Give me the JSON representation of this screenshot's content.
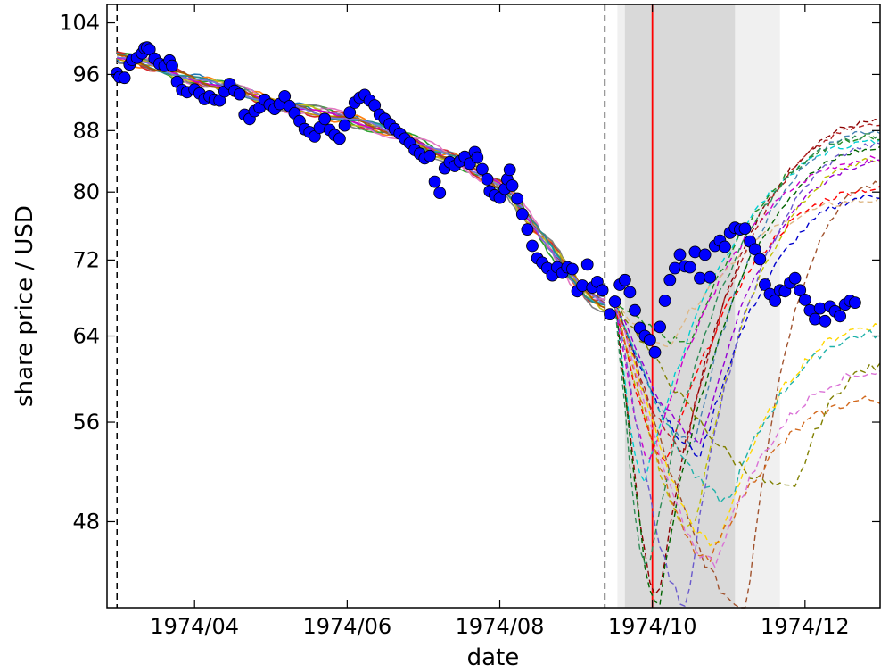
{
  "chart_data": {
    "type": "scatter",
    "xlabel": "date",
    "ylabel": "share price / USD",
    "y_scale": "log",
    "xlim": [
      "1974-02-25",
      "1974-12-31"
    ],
    "ylim": [
      42,
      107
    ],
    "x_ticks": [
      {
        "date": "1974-04-01",
        "label": "1974/04"
      },
      {
        "date": "1974-06-01",
        "label": "1974/06"
      },
      {
        "date": "1974-08-01",
        "label": "1974/08"
      },
      {
        "date": "1974-10-01",
        "label": "1974/10"
      },
      {
        "date": "1974-12-01",
        "label": "1974/12"
      }
    ],
    "y_ticks": [
      {
        "value": 48,
        "label": "48"
      },
      {
        "value": 56,
        "label": "56"
      },
      {
        "value": 64,
        "label": "64"
      },
      {
        "value": 72,
        "label": "72"
      },
      {
        "value": 80,
        "label": "80"
      },
      {
        "value": 88,
        "label": "88"
      },
      {
        "value": 96,
        "label": "96"
      },
      {
        "value": 104,
        "label": "104"
      }
    ],
    "grid": false,
    "vertical_lines": [
      {
        "date": "1974-03-01",
        "style": "dashed",
        "color": "#000000"
      },
      {
        "date": "1974-09-12",
        "style": "dashed",
        "color": "#000000"
      },
      {
        "date": "1974-10-01",
        "style": "solid",
        "color": "#ff0000"
      }
    ],
    "shaded_regions": [
      {
        "start": "1974-09-17",
        "end": "1974-11-21",
        "color": "#f0f0f0"
      },
      {
        "start": "1974-09-20",
        "end": "1974-11-03",
        "color": "#d9d9d9"
      }
    ],
    "observed": {
      "color": "#0000ff",
      "points": [
        [
          "1974-03-01",
          96.2
        ],
        [
          "1974-03-02",
          95.6
        ],
        [
          "1974-03-04",
          95.5
        ],
        [
          "1974-03-06",
          97.5
        ],
        [
          "1974-03-07",
          98.2
        ],
        [
          "1974-03-09",
          98.5
        ],
        [
          "1974-03-11",
          99.2
        ],
        [
          "1974-03-12",
          100.0
        ],
        [
          "1974-03-13",
          100.1
        ],
        [
          "1974-03-14",
          99.8
        ],
        [
          "1974-03-16",
          98.4
        ],
        [
          "1974-03-18",
          97.6
        ],
        [
          "1974-03-20",
          97.3
        ],
        [
          "1974-03-22",
          98.1
        ],
        [
          "1974-03-23",
          97.3
        ],
        [
          "1974-03-25",
          94.9
        ],
        [
          "1974-03-27",
          93.7
        ],
        [
          "1974-03-29",
          93.4
        ],
        [
          "1974-04-01",
          93.8
        ],
        [
          "1974-04-03",
          93.2
        ],
        [
          "1974-04-05",
          92.4
        ],
        [
          "1974-04-07",
          92.8
        ],
        [
          "1974-04-09",
          92.3
        ],
        [
          "1974-04-11",
          92.2
        ],
        [
          "1974-04-13",
          93.5
        ],
        [
          "1974-04-15",
          94.6
        ],
        [
          "1974-04-17",
          93.6
        ],
        [
          "1974-04-19",
          93.1
        ],
        [
          "1974-04-21",
          90.2
        ],
        [
          "1974-04-23",
          89.6
        ],
        [
          "1974-04-25",
          90.7
        ],
        [
          "1974-04-27",
          91.2
        ],
        [
          "1974-04-29",
          92.3
        ],
        [
          "1974-05-01",
          91.6
        ],
        [
          "1974-05-03",
          91.0
        ],
        [
          "1974-05-05",
          91.7
        ],
        [
          "1974-05-07",
          92.8
        ],
        [
          "1974-05-09",
          91.4
        ],
        [
          "1974-05-11",
          90.4
        ],
        [
          "1974-05-13",
          89.3
        ],
        [
          "1974-05-15",
          88.2
        ],
        [
          "1974-05-17",
          87.8
        ],
        [
          "1974-05-19",
          87.2
        ],
        [
          "1974-05-21",
          88.4
        ],
        [
          "1974-05-23",
          89.6
        ],
        [
          "1974-05-25",
          88.1
        ],
        [
          "1974-05-27",
          87.4
        ],
        [
          "1974-05-29",
          86.9
        ],
        [
          "1974-05-31",
          88.7
        ],
        [
          "1974-06-02",
          90.5
        ],
        [
          "1974-06-04",
          91.9
        ],
        [
          "1974-06-06",
          92.6
        ],
        [
          "1974-06-08",
          93.0
        ],
        [
          "1974-06-10",
          92.2
        ],
        [
          "1974-06-12",
          91.5
        ],
        [
          "1974-06-14",
          90.2
        ],
        [
          "1974-06-16",
          89.6
        ],
        [
          "1974-06-18",
          88.9
        ],
        [
          "1974-06-20",
          88.2
        ],
        [
          "1974-06-22",
          87.6
        ],
        [
          "1974-06-24",
          86.9
        ],
        [
          "1974-06-26",
          86.3
        ],
        [
          "1974-06-28",
          85.4
        ],
        [
          "1974-06-30",
          84.9
        ],
        [
          "1974-07-02",
          84.3
        ],
        [
          "1974-07-04",
          84.6
        ],
        [
          "1974-07-06",
          81.3
        ],
        [
          "1974-07-08",
          79.9
        ],
        [
          "1974-07-10",
          83.0
        ],
        [
          "1974-07-12",
          83.8
        ],
        [
          "1974-07-14",
          83.3
        ],
        [
          "1974-07-16",
          83.9
        ],
        [
          "1974-07-18",
          84.5
        ],
        [
          "1974-07-20",
          83.6
        ],
        [
          "1974-07-22",
          85.1
        ],
        [
          "1974-07-23",
          84.4
        ],
        [
          "1974-07-25",
          82.9
        ],
        [
          "1974-07-27",
          81.6
        ],
        [
          "1974-07-28",
          80.1
        ],
        [
          "1974-07-30",
          79.6
        ],
        [
          "1974-08-01",
          79.3
        ],
        [
          "1974-08-03",
          80.4
        ],
        [
          "1974-08-04",
          81.6
        ],
        [
          "1974-08-05",
          82.8
        ],
        [
          "1974-08-06",
          80.8
        ],
        [
          "1974-08-08",
          79.2
        ],
        [
          "1974-08-10",
          77.3
        ],
        [
          "1974-08-12",
          75.5
        ],
        [
          "1974-08-14",
          73.6
        ],
        [
          "1974-08-16",
          72.2
        ],
        [
          "1974-08-18",
          71.7
        ],
        [
          "1974-08-20",
          71.1
        ],
        [
          "1974-08-22",
          70.3
        ],
        [
          "1974-08-24",
          71.2
        ],
        [
          "1974-08-26",
          70.6
        ],
        [
          "1974-08-28",
          71.2
        ],
        [
          "1974-08-30",
          71.0
        ],
        [
          "1974-09-01",
          68.6
        ],
        [
          "1974-09-03",
          69.2
        ],
        [
          "1974-09-05",
          71.5
        ],
        [
          "1974-09-07",
          69.0
        ],
        [
          "1974-09-09",
          69.6
        ],
        [
          "1974-09-11",
          68.7
        ],
        [
          "1974-09-14",
          66.2
        ],
        [
          "1974-09-16",
          67.5
        ],
        [
          "1974-09-18",
          69.3
        ],
        [
          "1974-09-20",
          69.8
        ],
        [
          "1974-09-22",
          68.5
        ],
        [
          "1974-09-24",
          66.6
        ],
        [
          "1974-09-26",
          64.8
        ],
        [
          "1974-09-28",
          64.0
        ],
        [
          "1974-09-30",
          63.6
        ],
        [
          "1974-10-02",
          62.4
        ],
        [
          "1974-10-04",
          64.9
        ],
        [
          "1974-10-06",
          67.6
        ],
        [
          "1974-10-08",
          69.8
        ],
        [
          "1974-10-10",
          71.1
        ],
        [
          "1974-10-12",
          72.6
        ],
        [
          "1974-10-14",
          71.3
        ],
        [
          "1974-10-16",
          71.2
        ],
        [
          "1974-10-18",
          72.9
        ],
        [
          "1974-10-20",
          70.0
        ],
        [
          "1974-10-22",
          72.6
        ],
        [
          "1974-10-24",
          70.1
        ],
        [
          "1974-10-26",
          73.6
        ],
        [
          "1974-10-28",
          74.2
        ],
        [
          "1974-10-30",
          73.5
        ],
        [
          "1974-11-01",
          75.1
        ],
        [
          "1974-11-03",
          75.7
        ],
        [
          "1974-11-05",
          75.5
        ],
        [
          "1974-11-07",
          75.6
        ],
        [
          "1974-11-09",
          74.1
        ],
        [
          "1974-11-11",
          73.2
        ],
        [
          "1974-11-13",
          72.1
        ],
        [
          "1974-11-15",
          69.3
        ],
        [
          "1974-11-17",
          68.3
        ],
        [
          "1974-11-19",
          67.6
        ],
        [
          "1974-11-21",
          68.7
        ],
        [
          "1974-11-23",
          68.6
        ],
        [
          "1974-11-25",
          69.5
        ],
        [
          "1974-11-27",
          70.0
        ],
        [
          "1974-11-29",
          68.7
        ],
        [
          "1974-12-01",
          67.7
        ],
        [
          "1974-12-03",
          66.6
        ],
        [
          "1974-12-05",
          65.7
        ],
        [
          "1974-12-07",
          66.8
        ],
        [
          "1974-12-09",
          65.5
        ],
        [
          "1974-12-11",
          67.0
        ],
        [
          "1974-12-13",
          66.5
        ],
        [
          "1974-12-15",
          66.0
        ],
        [
          "1974-12-17",
          67.2
        ],
        [
          "1974-12-19",
          67.6
        ],
        [
          "1974-12-21",
          67.4
        ]
      ]
    },
    "fit_colors": [
      "#1f77b4",
      "#ff7f0e",
      "#2ca02c",
      "#d62728",
      "#9467bd",
      "#8c564b",
      "#e377c2",
      "#7f7f7f",
      "#bcbd22",
      "#17becf",
      "#cc9900",
      "#cc00cc",
      "#2a8a8a",
      "#aa5500",
      "#7777dd"
    ],
    "fit_trend": [
      [
        "1974-03-01",
        98.8
      ],
      [
        "1974-03-15",
        97.2
      ],
      [
        "1974-04-01",
        95.4
      ],
      [
        "1974-04-20",
        93.3
      ],
      [
        "1974-05-10",
        91.3
      ],
      [
        "1974-05-31",
        89.7
      ],
      [
        "1974-06-15",
        88.4
      ],
      [
        "1974-07-01",
        86.0
      ],
      [
        "1974-07-20",
        83.3
      ],
      [
        "1974-08-05",
        79.9
      ],
      [
        "1974-08-18",
        74.7
      ],
      [
        "1974-08-30",
        70.2
      ],
      [
        "1974-09-06",
        68.1
      ],
      [
        "1974-09-12",
        67.2
      ]
    ],
    "forecast_colors": [
      "#4682b4",
      "#00ced1",
      "#8b0000",
      "#228b22",
      "#c0c000",
      "#9400d3",
      "#006400",
      "#cc00cc",
      "#deb887",
      "#a0522d",
      "#ff0000",
      "#0000cd",
      "#ffd700",
      "#20b2aa",
      "#808000",
      "#d2691e",
      "#6a5acd",
      "#b22222",
      "#2e8b57",
      "#da70d6"
    ],
    "forecast_start": [
      "1974-09-16",
      67.5
    ],
    "forecast_end_date": "1974-12-31",
    "forecast_ends": [
      88.0,
      86.5,
      89.2,
      87.1,
      84.0,
      83.7,
      85.5,
      84.2,
      79.0,
      81.0,
      80.4,
      79.5,
      65.0,
      64.2,
      61.0,
      58.0,
      86.0,
      88.7,
      87.4,
      60.5
    ]
  }
}
